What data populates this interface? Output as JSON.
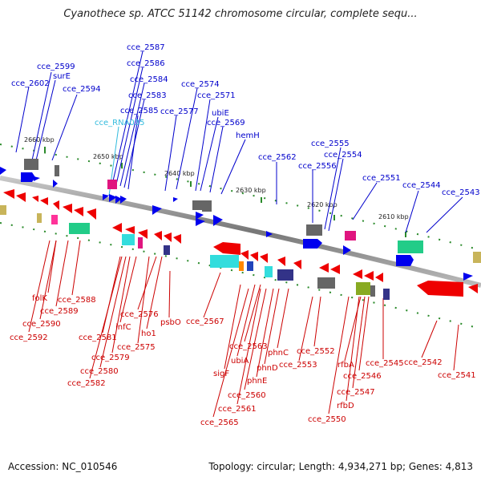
{
  "title": "Cyanothece sp. ATCC 51142 chromosome circular, complete sequ...",
  "footer": {
    "accession": "Accession: NC_010546",
    "summary": "Topology: circular; Length: 4,934,271 bp; Genes: 4,813"
  },
  "colors": {
    "forward_label": "#0000cc",
    "reverse_label": "#cc0000",
    "rna_label": "#33bbdd",
    "forward_gene": "#0000ee",
    "reverse_gene": "#ee0000",
    "backbone": "#888888",
    "tick": "#2a8a2a"
  },
  "scale_labels": [
    "2660 kbp",
    "2650 kbp",
    "2640 kbp",
    "2630 kbp",
    "2620 kbp",
    "2610 kbp"
  ],
  "forward_labels": [
    "cce_2599",
    "surE",
    "cce_2602",
    "cce_2594",
    "cce_2587",
    "cce_2586",
    "cce_2584",
    "cce_2583",
    "cce_2585",
    "cce_RNA035",
    "cce_2574",
    "cce_2571",
    "cce_2577",
    "ubiE",
    "cce_2569",
    "hemH",
    "cce_2562",
    "cce_2555",
    "cce_2554",
    "cce_2556",
    "cce_2551",
    "cce_2544",
    "cce_2543"
  ],
  "reverse_labels": [
    "folK",
    "cce_2588",
    "cce_2589",
    "cce_2590",
    "cce_2592",
    "cce_2581",
    "infC",
    "cce_2579",
    "cce_2580",
    "cce_2582",
    "cce_2576",
    "cce_2575",
    "ho1",
    "psbO",
    "cce_2567",
    "cce_2563",
    "ubiA",
    "sigF",
    "phnC",
    "phnD",
    "phnE",
    "cce_2560",
    "cce_2561",
    "cce_2565",
    "cce_2552",
    "cce_2553",
    "rfbA",
    "cce_2546",
    "cce_2547",
    "rfbD",
    "cce_2550",
    "cce_2545",
    "cce_2542",
    "cce_2541"
  ]
}
